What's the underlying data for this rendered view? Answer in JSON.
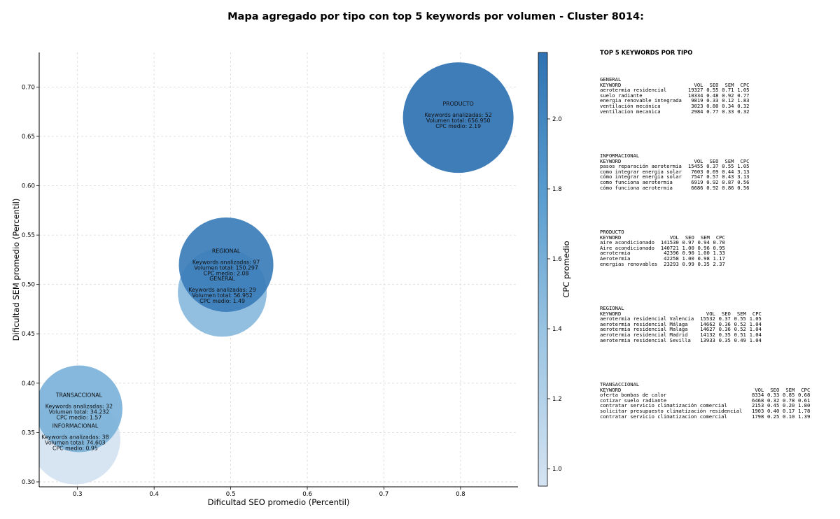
{
  "title": "Mapa agregado por tipo con top 5 keywords por volumen - Cluster 8014:",
  "chart_data": {
    "type": "scatter",
    "subtype": "bubble",
    "xlabel": "Dificultad SEO promedio (Percentil)",
    "ylabel": "Dificultad SEM promedio (Percentil)",
    "xlim": [
      0.25,
      0.875
    ],
    "ylim": [
      0.295,
      0.735
    ],
    "xticks": [
      "0.3",
      "0.4",
      "0.5",
      "0.6",
      "0.7",
      "0.8"
    ],
    "xtick_values": [
      0.3,
      0.4,
      0.5,
      0.6,
      0.7,
      0.8
    ],
    "yticks": [
      "0.30",
      "0.35",
      "0.40",
      "0.45",
      "0.50",
      "0.55",
      "0.60",
      "0.65",
      "0.70"
    ],
    "ytick_values": [
      0.3,
      0.35,
      0.4,
      0.45,
      0.5,
      0.55,
      0.6,
      0.65,
      0.7
    ],
    "grid": true,
    "colorbar": {
      "label": "CPC promedio",
      "range": [
        0.95,
        2.19
      ],
      "ticks": [
        "1.0",
        "1.2",
        "1.4",
        "1.6",
        "1.8",
        "2.0"
      ],
      "tick_values": [
        1.0,
        1.2,
        1.4,
        1.6,
        1.8,
        2.0
      ],
      "color_low": "#d4e3f2",
      "color_high": "#2f72b3"
    },
    "label_prefix_keywords": "Keywords analizadas: ",
    "label_prefix_volume": "Volumen total: ",
    "label_prefix_cpc": "CPC medio: ",
    "points": [
      {
        "name": "INFORMACIONAL",
        "x": 0.297,
        "y": 0.343,
        "keywords": "38",
        "volume": "74.603",
        "cpc": "0.95",
        "cpc_value": 0.95,
        "volume_value": 74603
      },
      {
        "name": "GENERAL",
        "x": 0.489,
        "y": 0.492,
        "keywords": "29",
        "volume": "56.952",
        "cpc": "1.49",
        "cpc_value": 1.49,
        "volume_value": 56952
      },
      {
        "name": "TRANSACCIONAL",
        "x": 0.302,
        "y": 0.374,
        "keywords": "32",
        "volume": "34.232",
        "cpc": "1.57",
        "cpc_value": 1.57,
        "volume_value": 34232
      },
      {
        "name": "REGIONAL",
        "x": 0.494,
        "y": 0.52,
        "keywords": "97",
        "volume": "150.297",
        "cpc": "2.08",
        "cpc_value": 2.08,
        "volume_value": 150297
      },
      {
        "name": "PRODUCTO",
        "x": 0.797,
        "y": 0.669,
        "keywords": "52",
        "volume": "656.950",
        "cpc": "2.19",
        "cpc_value": 2.19,
        "volume_value": 656950
      }
    ]
  },
  "side": {
    "title": "TOP 5 KEYWORDS POR TIPO",
    "groups": [
      {
        "name": "GENERAL",
        "headers": [
          "KEYWORD",
          "VOL",
          "SEO",
          "SEM",
          "CPC"
        ],
        "rows": [
          [
            "aerotermia residencial",
            "19327",
            "0.55",
            "0.71",
            "1.05"
          ],
          [
            "suelo radiante",
            "10334",
            "0.48",
            "0.92",
            "0.77"
          ],
          [
            "energia renovable integrada",
            "9819",
            "0.33",
            "0.12",
            "1.83"
          ],
          [
            "ventilación mecánica",
            "3023",
            "0.80",
            "0.34",
            "0.32"
          ],
          [
            "ventilacion mecanica",
            "2984",
            "0.77",
            "0.33",
            "0.32"
          ]
        ]
      },
      {
        "name": "INFORMACIONAL",
        "headers": [
          "KEYWORD",
          "VOL",
          "SEO",
          "SEM",
          "CPC"
        ],
        "rows": [
          [
            "pasos reparación aerotermia",
            "15455",
            "0.37",
            "0.55",
            "1.05"
          ],
          [
            "como integrar energia solar",
            "7603",
            "0.69",
            "0.44",
            "3.13"
          ],
          [
            "cómo integrar energia solar",
            "7547",
            "0.57",
            "0.43",
            "3.13"
          ],
          [
            "como funciona aerotermia",
            "6919",
            "0.92",
            "0.87",
            "0.56"
          ],
          [
            "cómo funciona aerotermia",
            "6686",
            "0.92",
            "0.86",
            "0.56"
          ]
        ]
      },
      {
        "name": "PRODUCTO",
        "headers": [
          "KEYWORD",
          "VOL",
          "SEO",
          "SEM",
          "CPC"
        ],
        "rows": [
          [
            "aire acondicionado",
            "141530",
            "0.97",
            "0.94",
            "0.70"
          ],
          [
            "Aire acondicionado",
            "140721",
            "1.00",
            "0.96",
            "0.95"
          ],
          [
            "aerotermia",
            "42396",
            "0.90",
            "1.00",
            "1.33"
          ],
          [
            "Aerotermia",
            "42258",
            "1.00",
            "0.98",
            "1.17"
          ],
          [
            "energias renovables",
            "23293",
            "0.99",
            "0.35",
            "2.37"
          ]
        ]
      },
      {
        "name": "REGIONAL",
        "headers": [
          "KEYWORD",
          "VOL",
          "SEO",
          "SEM",
          "CPC"
        ],
        "rows": [
          [
            "aerotermia residencial Valencia",
            "15532",
            "0.37",
            "0.55",
            "1.05"
          ],
          [
            "aerotermia residencial Málaga",
            "14662",
            "0.36",
            "0.52",
            "1.04"
          ],
          [
            "aerotermia residencial Malaga",
            "14627",
            "0.36",
            "0.52",
            "1.04"
          ],
          [
            "aerotermia residencial Madrid",
            "14132",
            "0.35",
            "0.51",
            "1.04"
          ],
          [
            "aerotermia residencial Sevilla",
            "13933",
            "0.35",
            "0.49",
            "1.04"
          ]
        ]
      },
      {
        "name": "TRANSACCIONAL",
        "headers": [
          "KEYWORD",
          "VOL",
          "SEO",
          "SEM",
          "CPC"
        ],
        "rows": [
          [
            "oferta bombas de calor",
            "8334",
            "0.33",
            "0.85",
            "0.68"
          ],
          [
            "cotizar suelo radiante",
            "6468",
            "0.32",
            "0.78",
            "0.61"
          ],
          [
            "contratar servicio climatización comercial",
            "2153",
            "0.45",
            "0.20",
            "1.80"
          ],
          [
            "solicitar presupuesto climatización residencial",
            "1903",
            "0.40",
            "0.17",
            "1.78"
          ],
          [
            "contratar servicio climatizacion comercial",
            "1798",
            "0.25",
            "0.10",
            "1.39"
          ]
        ]
      }
    ]
  }
}
